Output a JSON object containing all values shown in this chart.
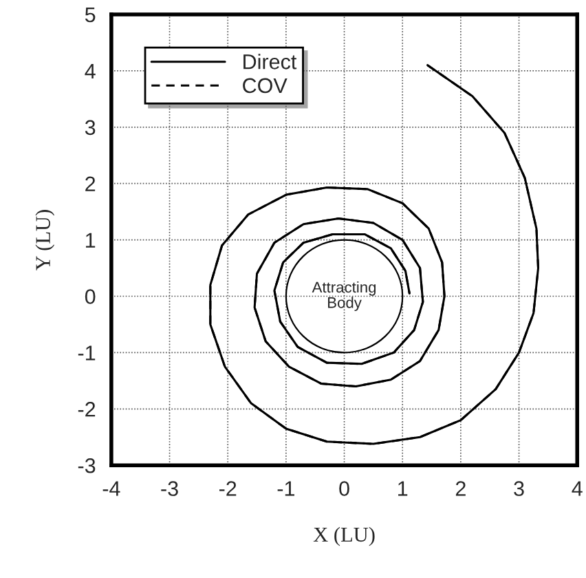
{
  "chart_data": {
    "type": "line",
    "xlabel": "X (LU)",
    "ylabel": "Y (LU)",
    "x": [
      1.43,
      2.2,
      2.75,
      3.1,
      3.3,
      3.33,
      3.25,
      3.0,
      2.6,
      2.0,
      1.3,
      0.5,
      -0.3,
      -1.0,
      -1.6,
      -2.05,
      -2.3,
      -2.3,
      -2.1,
      -1.65,
      -1.0,
      -0.3,
      0.4,
      1.0,
      1.45,
      1.68,
      1.72,
      1.62,
      1.3,
      0.8,
      0.2,
      -0.4,
      -0.95,
      -1.35,
      -1.54,
      -1.5,
      -1.2,
      -0.7,
      -0.1,
      0.5,
      1.0,
      1.3,
      1.35,
      1.2,
      0.85,
      0.3,
      -0.3,
      -0.8,
      -1.1,
      -1.2,
      -1.05,
      -0.7,
      -0.2,
      0.35,
      0.8,
      1.05,
      1.12
    ],
    "series": [
      {
        "name": "Direct",
        "color": "#000000",
        "line_style": "solid",
        "values": [
          4.1,
          3.55,
          2.9,
          2.1,
          1.2,
          0.5,
          -0.3,
          -1.0,
          -1.65,
          -2.2,
          -2.5,
          -2.62,
          -2.58,
          -2.35,
          -1.9,
          -1.25,
          -0.5,
          0.2,
          0.9,
          1.45,
          1.8,
          1.93,
          1.9,
          1.65,
          1.2,
          0.6,
          0.0,
          -0.6,
          -1.15,
          -1.48,
          -1.6,
          -1.55,
          -1.25,
          -0.8,
          -0.2,
          0.4,
          0.95,
          1.28,
          1.38,
          1.3,
          1.0,
          0.5,
          -0.1,
          -0.6,
          -1.0,
          -1.2,
          -1.18,
          -0.9,
          -0.45,
          0.1,
          0.6,
          0.95,
          1.1,
          1.1,
          0.85,
          0.45,
          0.05
        ]
      },
      {
        "name": "COV",
        "color": "#000000",
        "line_style": "dashed",
        "values": [
          4.1,
          3.55,
          2.9,
          2.1,
          1.2,
          0.5,
          -0.3,
          -1.0,
          -1.65,
          -2.2,
          -2.5,
          -2.62,
          -2.58,
          -2.35,
          -1.9,
          -1.25,
          -0.5,
          0.2,
          0.9,
          1.45,
          1.8,
          1.93,
          1.9,
          1.65,
          1.2,
          0.6,
          0.0,
          -0.6,
          -1.15,
          -1.48,
          -1.6,
          -1.55,
          -1.25,
          -0.8,
          -0.2,
          0.4,
          0.95,
          1.28,
          1.38,
          1.3,
          1.0,
          0.5,
          -0.1,
          -0.6,
          -1.0,
          -1.2,
          -1.18,
          -0.9,
          -0.45,
          0.1,
          0.6,
          0.95,
          1.1,
          1.1,
          0.85,
          0.45,
          0.05
        ]
      }
    ],
    "annotations": [
      "Attracting\nBody"
    ],
    "xlim": [
      -4,
      4
    ],
    "ylim": [
      -3,
      5
    ],
    "xticks": [
      -4,
      -3,
      -2,
      -1,
      0,
      1,
      2,
      3,
      4
    ],
    "yticks": [
      -3,
      -2,
      -1,
      0,
      1,
      2,
      3,
      4,
      5
    ],
    "grid": true,
    "legend": "top left",
    "marker": "none"
  }
}
